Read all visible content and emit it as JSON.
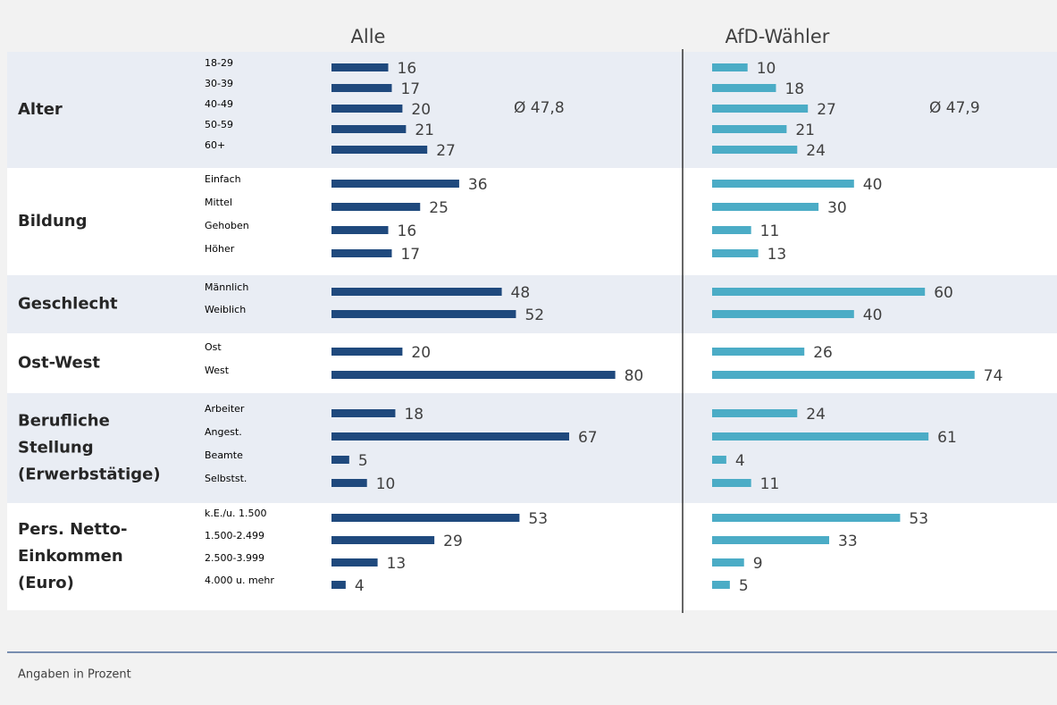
{
  "chart_data": {
    "type": "bar",
    "series": [
      {
        "name": "Alle",
        "color": "#1f497d"
      },
      {
        "name": "AfD-Wähler",
        "color": "#4bacc6"
      }
    ],
    "xlim": [
      0,
      100
    ],
    "groups": [
      {
        "label": [
          "Alter"
        ],
        "categories": [
          "18-29",
          "30-39",
          "40-49",
          "50-59",
          "60+"
        ],
        "values": [
          [
            16,
            17,
            20,
            21,
            27
          ],
          [
            10,
            18,
            27,
            21,
            24
          ]
        ],
        "average_labels": [
          "Ø 47,8",
          "Ø 47,9"
        ]
      },
      {
        "label": [
          "Bildung"
        ],
        "categories": [
          "Einfach",
          "Mittel",
          "Gehoben",
          "Höher"
        ],
        "values": [
          [
            36,
            25,
            16,
            17
          ],
          [
            40,
            30,
            11,
            13
          ]
        ]
      },
      {
        "label": [
          "Geschlecht"
        ],
        "categories": [
          "Männlich",
          "Weiblich"
        ],
        "values": [
          [
            48,
            52
          ],
          [
            60,
            40
          ]
        ]
      },
      {
        "label": [
          "Ost-West"
        ],
        "categories": [
          "Ost",
          "West"
        ],
        "values": [
          [
            20,
            80
          ],
          [
            26,
            74
          ]
        ]
      },
      {
        "label": [
          "Berufliche",
          "Stellung",
          "(Erwerbstätige)"
        ],
        "categories": [
          "Arbeiter",
          "Angest.",
          "Beamte",
          "Selbstst."
        ],
        "values": [
          [
            18,
            67,
            5,
            10
          ],
          [
            24,
            61,
            4,
            11
          ]
        ]
      },
      {
        "label": [
          "Pers. Netto-",
          "Einkommen",
          "(Euro)"
        ],
        "categories": [
          "k.E./u. 1.500",
          "1.500-2.499",
          "2.500-3.999",
          "4.000 u. mehr"
        ],
        "values": [
          [
            53,
            29,
            13,
            4
          ],
          [
            53,
            33,
            9,
            5
          ]
        ]
      }
    ],
    "note": "Angaben in Prozent"
  }
}
